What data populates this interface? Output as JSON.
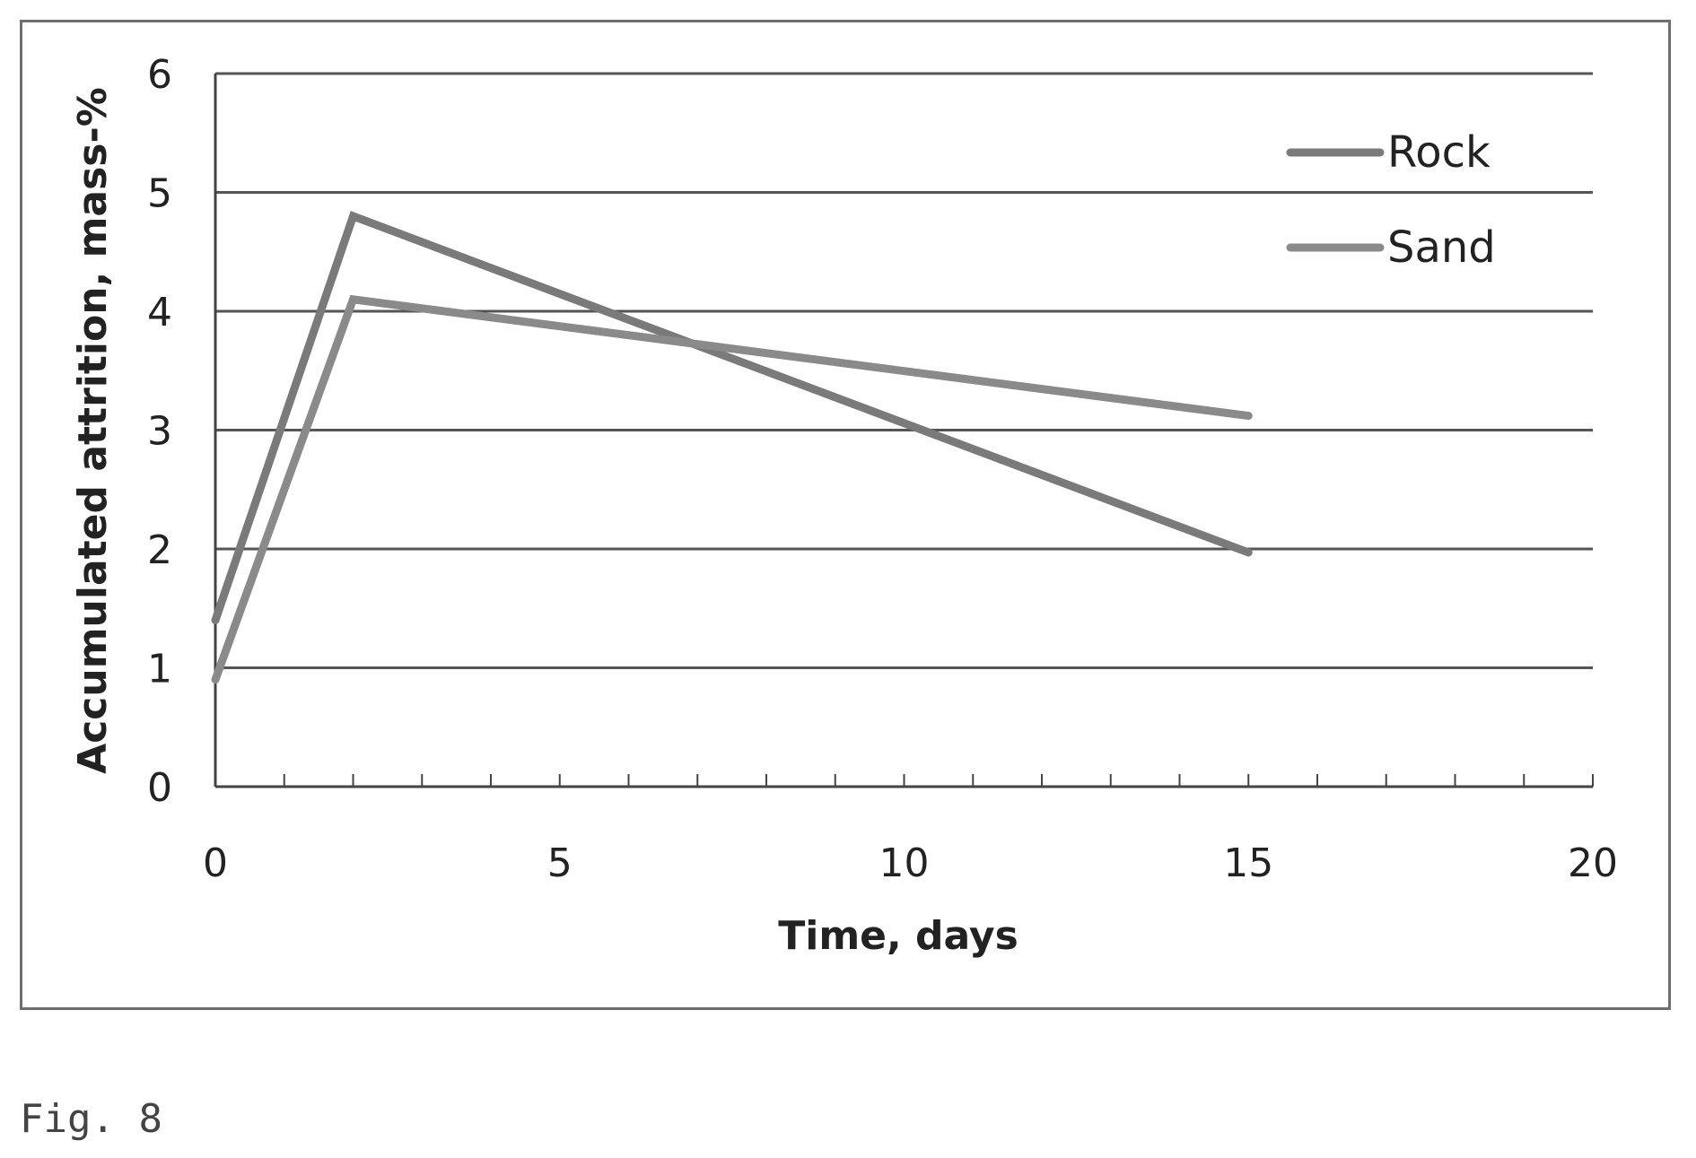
{
  "caption": "Fig. 8",
  "chart_data": {
    "type": "line",
    "title": "",
    "xlabel": "Time, days",
    "ylabel": "Accumulated attrition, mass-%",
    "xlim": [
      0,
      20
    ],
    "ylim": [
      0,
      6
    ],
    "xticks": [
      0,
      5,
      10,
      15,
      20
    ],
    "yticks": [
      0,
      1,
      2,
      3,
      4,
      5,
      6
    ],
    "grid": "horizontal",
    "legend": "top-right",
    "series": [
      {
        "name": "Rock",
        "color": "#7a7a7a",
        "x": [
          0,
          2,
          15
        ],
        "y": [
          1.4,
          4.8,
          1.97
        ]
      },
      {
        "name": "Sand",
        "color": "#8a8a8a",
        "x": [
          0,
          2,
          15
        ],
        "y": [
          0.9,
          4.1,
          3.12
        ]
      }
    ]
  }
}
